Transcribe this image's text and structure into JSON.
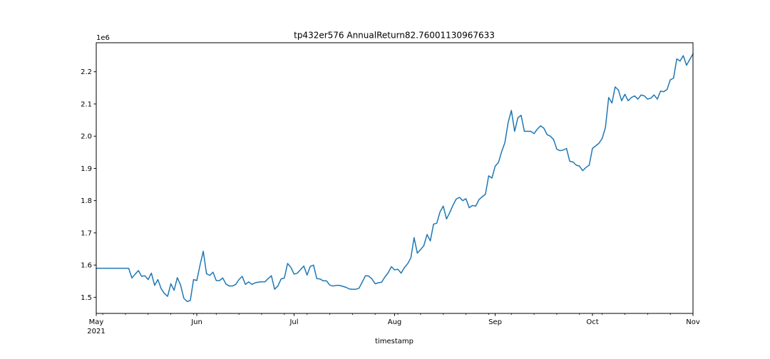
{
  "chart_data": {
    "type": "line",
    "title": "tp432er576 AnnualReturn82.76001130967633",
    "xlabel": "timestamp",
    "ylabel": "",
    "y_scale_label": "1e6",
    "y_multiplier": 1000000,
    "xlim": [
      "2021-05-01",
      "2021-11-01"
    ],
    "ylim": [
      1450000,
      2290000
    ],
    "grid": false,
    "legend": "none",
    "line_color": "#1f77b4",
    "x_ticks": [
      {
        "date": "2021-05-01",
        "label": "May",
        "sublabel": "2021"
      },
      {
        "date": "2021-06-01",
        "label": "Jun",
        "sublabel": ""
      },
      {
        "date": "2021-07-01",
        "label": "Jul",
        "sublabel": ""
      },
      {
        "date": "2021-08-01",
        "label": "Aug",
        "sublabel": ""
      },
      {
        "date": "2021-09-01",
        "label": "Sep",
        "sublabel": ""
      },
      {
        "date": "2021-10-01",
        "label": "Oct",
        "sublabel": ""
      },
      {
        "date": "2021-11-01",
        "label": "Nov",
        "sublabel": ""
      }
    ],
    "y_ticks": [
      {
        "value": 1500000,
        "label": "1.5"
      },
      {
        "value": 1600000,
        "label": "1.6"
      },
      {
        "value": 1700000,
        "label": "1.7"
      },
      {
        "value": 1800000,
        "label": "1.8"
      },
      {
        "value": 1900000,
        "label": "1.9"
      },
      {
        "value": 2000000,
        "label": "2.0"
      },
      {
        "value": 2100000,
        "label": "2.1"
      },
      {
        "value": 2200000,
        "label": "2.2"
      }
    ],
    "series": [
      {
        "x": [
          "2021-05-01",
          "2021-05-02",
          "2021-05-03",
          "2021-05-04",
          "2021-05-05",
          "2021-05-06",
          "2021-05-07",
          "2021-05-08",
          "2021-05-09",
          "2021-05-10",
          "2021-05-11",
          "2021-05-12",
          "2021-05-13",
          "2021-05-14",
          "2021-05-15",
          "2021-05-16",
          "2021-05-17",
          "2021-05-18",
          "2021-05-19",
          "2021-05-20",
          "2021-05-21",
          "2021-05-22",
          "2021-05-23",
          "2021-05-24",
          "2021-05-25",
          "2021-05-26",
          "2021-05-27",
          "2021-05-28",
          "2021-05-29",
          "2021-05-30",
          "2021-05-31",
          "2021-06-01",
          "2021-06-02",
          "2021-06-03",
          "2021-06-04",
          "2021-06-05",
          "2021-06-06",
          "2021-06-07",
          "2021-06-08",
          "2021-06-09",
          "2021-06-10",
          "2021-06-11",
          "2021-06-12",
          "2021-06-13",
          "2021-06-14",
          "2021-06-15",
          "2021-06-16",
          "2021-06-17",
          "2021-06-18",
          "2021-06-19",
          "2021-06-20",
          "2021-06-21",
          "2021-06-22",
          "2021-06-23",
          "2021-06-24",
          "2021-06-25",
          "2021-06-26",
          "2021-06-27",
          "2021-06-28",
          "2021-06-29",
          "2021-06-30",
          "2021-07-01",
          "2021-07-02",
          "2021-07-03",
          "2021-07-04",
          "2021-07-05",
          "2021-07-06",
          "2021-07-07",
          "2021-07-08",
          "2021-07-09",
          "2021-07-10",
          "2021-07-11",
          "2021-07-12",
          "2021-07-13",
          "2021-07-14",
          "2021-07-15",
          "2021-07-16",
          "2021-07-17",
          "2021-07-18",
          "2021-07-19",
          "2021-07-20",
          "2021-07-21",
          "2021-07-22",
          "2021-07-23",
          "2021-07-24",
          "2021-07-25",
          "2021-07-26",
          "2021-07-27",
          "2021-07-28",
          "2021-07-29",
          "2021-07-30",
          "2021-07-31",
          "2021-08-01",
          "2021-08-02",
          "2021-08-03",
          "2021-08-04",
          "2021-08-05",
          "2021-08-06",
          "2021-08-07",
          "2021-08-08",
          "2021-08-09",
          "2021-08-10",
          "2021-08-11",
          "2021-08-12",
          "2021-08-13",
          "2021-08-14",
          "2021-08-15",
          "2021-08-16",
          "2021-08-17",
          "2021-08-18",
          "2021-08-19",
          "2021-08-20",
          "2021-08-21",
          "2021-08-22",
          "2021-08-23",
          "2021-08-24",
          "2021-08-25",
          "2021-08-26",
          "2021-08-27",
          "2021-08-28",
          "2021-08-29",
          "2021-08-30",
          "2021-08-31",
          "2021-09-01",
          "2021-09-02",
          "2021-09-03",
          "2021-09-04",
          "2021-09-05",
          "2021-09-06",
          "2021-09-07",
          "2021-09-08",
          "2021-09-09",
          "2021-09-10",
          "2021-09-11",
          "2021-09-12",
          "2021-09-13",
          "2021-09-14",
          "2021-09-15",
          "2021-09-16",
          "2021-09-17",
          "2021-09-18",
          "2021-09-19",
          "2021-09-20",
          "2021-09-21",
          "2021-09-22",
          "2021-09-23",
          "2021-09-24",
          "2021-09-25",
          "2021-09-26",
          "2021-09-27",
          "2021-09-28",
          "2021-09-29",
          "2021-09-30",
          "2021-10-01",
          "2021-10-02",
          "2021-10-03",
          "2021-10-04",
          "2021-10-05",
          "2021-10-06",
          "2021-10-07",
          "2021-10-08",
          "2021-10-09",
          "2021-10-10",
          "2021-10-11",
          "2021-10-12",
          "2021-10-13",
          "2021-10-14",
          "2021-10-15",
          "2021-10-16",
          "2021-10-17",
          "2021-10-18",
          "2021-10-19",
          "2021-10-20",
          "2021-10-21",
          "2021-10-22",
          "2021-10-23",
          "2021-10-24",
          "2021-10-25",
          "2021-10-26",
          "2021-10-27",
          "2021-10-28",
          "2021-10-29",
          "2021-10-30",
          "2021-10-31",
          "2021-11-01"
        ],
        "y": [
          1590000,
          1590000,
          1590000,
          1590000,
          1590000,
          1590000,
          1590000,
          1590000,
          1590000,
          1590000,
          1590000,
          1560000,
          1572000,
          1583000,
          1565000,
          1567000,
          1555000,
          1575000,
          1537000,
          1555000,
          1527000,
          1512000,
          1503000,
          1542000,
          1522000,
          1561000,
          1538000,
          1497000,
          1487000,
          1490000,
          1555000,
          1552000,
          1600000,
          1643000,
          1573000,
          1568000,
          1578000,
          1552000,
          1552000,
          1560000,
          1541000,
          1535000,
          1535000,
          1540000,
          1555000,
          1565000,
          1540000,
          1548000,
          1540000,
          1545000,
          1547000,
          1548000,
          1548000,
          1558000,
          1567000,
          1525000,
          1535000,
          1557000,
          1560000,
          1605000,
          1593000,
          1572000,
          1575000,
          1586000,
          1597000,
          1569000,
          1596000,
          1600000,
          1558000,
          1557000,
          1551000,
          1551000,
          1538000,
          1535000,
          1537000,
          1537000,
          1534000,
          1531000,
          1526000,
          1525000,
          1525000,
          1528000,
          1547000,
          1567000,
          1566000,
          1557000,
          1542000,
          1545000,
          1547000,
          1563000,
          1576000,
          1595000,
          1585000,
          1587000,
          1575000,
          1592000,
          1604000,
          1622000,
          1685000,
          1637000,
          1648000,
          1660000,
          1695000,
          1675000,
          1727000,
          1730000,
          1765000,
          1783000,
          1743000,
          1763000,
          1786000,
          1805000,
          1810000,
          1800000,
          1806000,
          1778000,
          1785000,
          1783000,
          1803000,
          1812000,
          1820000,
          1877000,
          1870000,
          1907000,
          1918000,
          1952000,
          1980000,
          2042000,
          2080000,
          2015000,
          2057000,
          2065000,
          2015000,
          2015000,
          2015000,
          2008000,
          2022000,
          2032000,
          2025000,
          2005000,
          2000000,
          1990000,
          1960000,
          1955000,
          1957000,
          1962000,
          1922000,
          1920000,
          1910000,
          1907000,
          1893000,
          1903000,
          1910000,
          1962000,
          1970000,
          1978000,
          1993000,
          2027000,
          2120000,
          2103000,
          2153000,
          2143000,
          2110000,
          2130000,
          2110000,
          2120000,
          2125000,
          2115000,
          2128000,
          2125000,
          2115000,
          2118000,
          2128000,
          2115000,
          2140000,
          2138000,
          2145000,
          2175000,
          2180000,
          2240000,
          2233000,
          2250000,
          2220000,
          2238000,
          2255000
        ]
      }
    ]
  }
}
